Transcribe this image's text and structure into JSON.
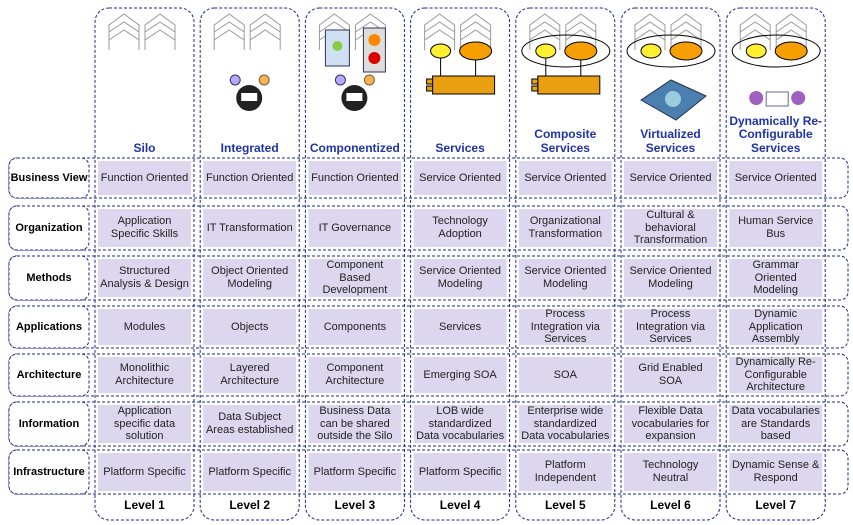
{
  "columns": [
    {
      "title": "Silo",
      "level": "Level 1"
    },
    {
      "title": "Integrated",
      "level": "Level 2"
    },
    {
      "title": "Componentized",
      "level": "Level 3"
    },
    {
      "title": "Services",
      "level": "Level 4"
    },
    {
      "title": "Composite Services",
      "level": "Level 5"
    },
    {
      "title": "Virtualized Services",
      "level": "Level 6"
    },
    {
      "title": "Dynamically Re-Configurable Services",
      "level": "Level 7"
    }
  ],
  "rows": [
    {
      "label": "Business View",
      "cells": [
        "Function Oriented",
        "Function Oriented",
        "Function Oriented",
        "Service Oriented",
        "Service Oriented",
        "Service Oriented",
        "Service Oriented"
      ]
    },
    {
      "label": "Organization",
      "cells": [
        "Application Specific Skills",
        "IT Transformation",
        "IT Governance",
        "Technology Adoption",
        "Organizational Transformation",
        "Cultural & behavioral Transformation",
        "Human Service Bus"
      ]
    },
    {
      "label": "Methods",
      "cells": [
        "Structured Analysis & Design",
        "Object Oriented Modeling",
        "Component Based Development",
        "Service Oriented Modeling",
        "Service Oriented Modeling",
        "Service Oriented Modeling",
        "Grammar Oriented Modeling"
      ]
    },
    {
      "label": "Applications",
      "cells": [
        "Modules",
        "Objects",
        "Components",
        "Services",
        "Process Integration via Services",
        "Process Integration via Services",
        "Dynamic Application Assembly"
      ]
    },
    {
      "label": "Architecture",
      "cells": [
        "Monolithic Architecture",
        "Layered Architecture",
        "Component Architecture",
        "Emerging SOA",
        "SOA",
        "Grid Enabled SOA",
        "Dynamically Re-Configurable Architecture"
      ]
    },
    {
      "label": "Information",
      "cells": [
        "Application specific data solution",
        "Data Subject Areas established",
        "Business Data can be shared outside the Silo",
        "LOB wide standardized Data vocabularies",
        "Enterprise wide standardized Data vocabularies",
        "Flexible Data vocabularies for expansion",
        "Data vocabularies are Standards based"
      ]
    },
    {
      "label": "Infrastructure",
      "cells": [
        "Platform Specific",
        "Platform Specific",
        "Platform Specific",
        "Platform Specific",
        "Platform Independent",
        "Technology Neutral",
        "Dynamic Sense & Respond"
      ]
    }
  ]
}
